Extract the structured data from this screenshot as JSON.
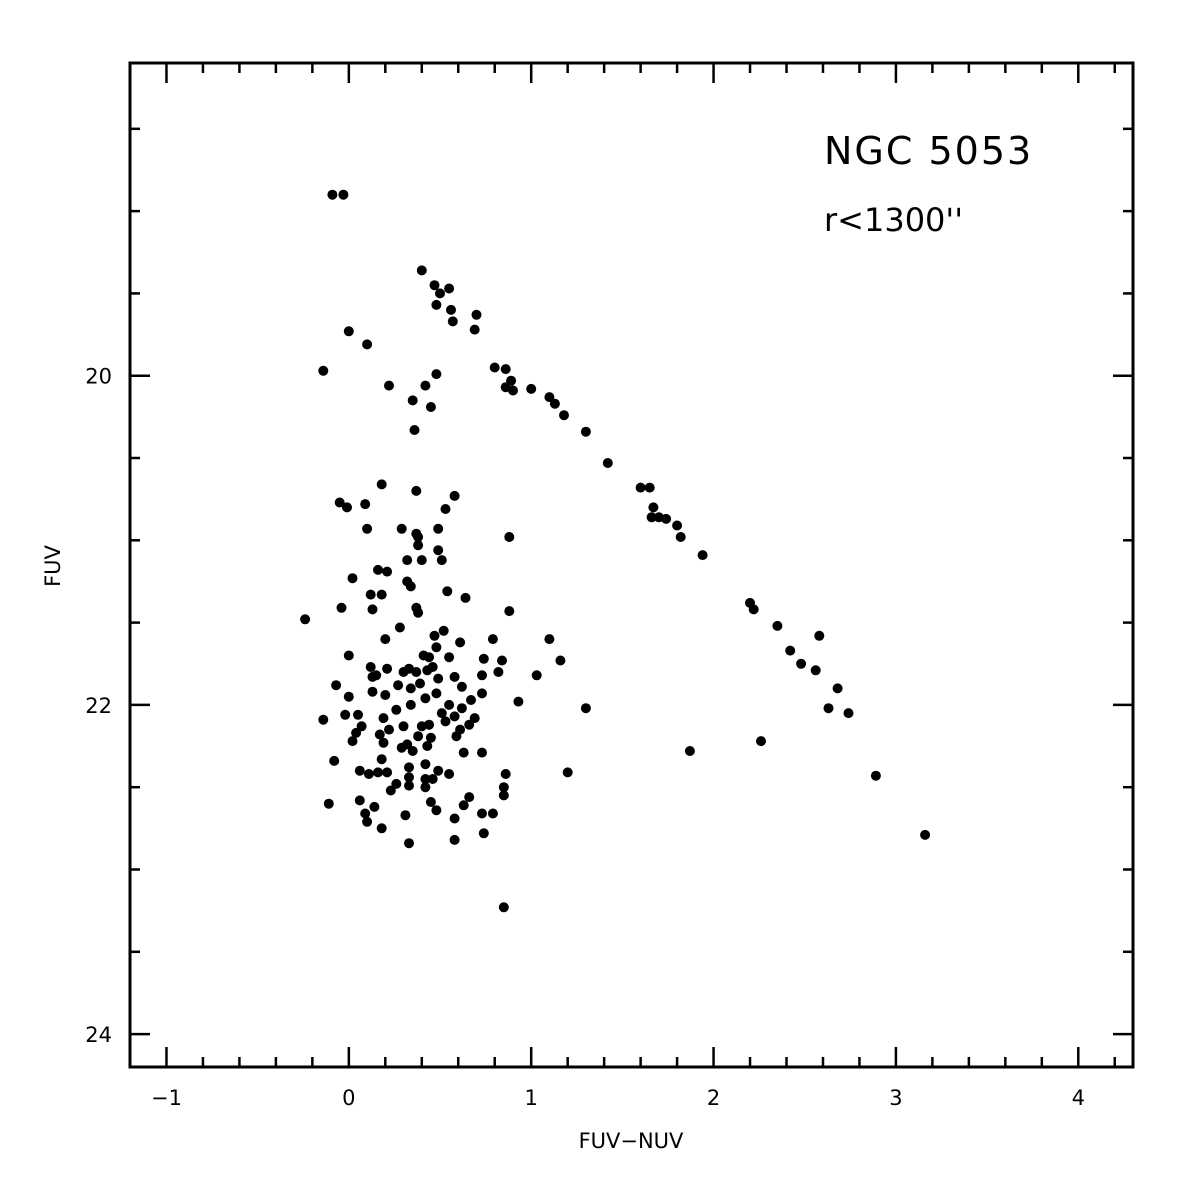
{
  "chart_data": {
    "type": "scatter",
    "title": "",
    "xlabel": "FUV−NUV",
    "ylabel": "FUV",
    "xlim": [
      -1.2,
      4.3
    ],
    "ylim": [
      24.2,
      18.1
    ],
    "y_inverted": true,
    "grid": false,
    "x_ticks": [
      {
        "value": -1,
        "label": "−1"
      },
      {
        "value": 0,
        "label": "0"
      },
      {
        "value": 1,
        "label": "1"
      },
      {
        "value": 2,
        "label": "2"
      },
      {
        "value": 3,
        "label": "3"
      },
      {
        "value": 4,
        "label": "4"
      }
    ],
    "y_ticks": [
      {
        "value": 20,
        "label": "20"
      },
      {
        "value": 22,
        "label": "22"
      },
      {
        "value": 24,
        "label": "24"
      }
    ],
    "annotations": [
      {
        "text": "NGC 5053",
        "role": "title"
      },
      {
        "text": "r<1300''",
        "role": "subtitle"
      }
    ],
    "marker_color": "#000000",
    "series": [
      {
        "points": [
          [
            -0.09,
            18.9
          ],
          [
            -0.03,
            18.9
          ],
          [
            0.4,
            19.36
          ],
          [
            0.47,
            19.45
          ],
          [
            0.5,
            19.5
          ],
          [
            0.55,
            19.47
          ],
          [
            0.48,
            19.57
          ],
          [
            0.56,
            19.6
          ],
          [
            0.7,
            19.63
          ],
          [
            0.57,
            19.67
          ],
          [
            0.69,
            19.72
          ],
          [
            0.0,
            19.73
          ],
          [
            0.1,
            19.81
          ],
          [
            -0.14,
            19.97
          ],
          [
            0.8,
            19.95
          ],
          [
            0.86,
            19.96
          ],
          [
            0.89,
            20.03
          ],
          [
            0.86,
            20.07
          ],
          [
            0.9,
            20.09
          ],
          [
            0.22,
            20.06
          ],
          [
            0.48,
            19.99
          ],
          [
            0.42,
            20.06
          ],
          [
            1.0,
            20.08
          ],
          [
            1.1,
            20.13
          ],
          [
            1.13,
            20.17
          ],
          [
            1.18,
            20.24
          ],
          [
            0.35,
            20.15
          ],
          [
            0.45,
            20.19
          ],
          [
            0.36,
            20.33
          ],
          [
            1.3,
            20.34
          ],
          [
            1.42,
            20.53
          ],
          [
            1.6,
            20.68
          ],
          [
            1.65,
            20.68
          ],
          [
            1.67,
            20.8
          ],
          [
            1.66,
            20.86
          ],
          [
            1.7,
            20.86
          ],
          [
            1.74,
            20.87
          ],
          [
            1.8,
            20.91
          ],
          [
            1.82,
            20.98
          ],
          [
            1.94,
            21.09
          ],
          [
            2.2,
            21.38
          ],
          [
            2.22,
            21.42
          ],
          [
            2.35,
            21.52
          ],
          [
            2.58,
            21.58
          ],
          [
            2.42,
            21.67
          ],
          [
            2.48,
            21.75
          ],
          [
            2.56,
            21.79
          ],
          [
            2.68,
            21.9
          ],
          [
            2.63,
            22.02
          ],
          [
            2.74,
            22.05
          ],
          [
            2.89,
            22.43
          ],
          [
            3.16,
            22.79
          ],
          [
            1.87,
            22.28
          ],
          [
            2.26,
            22.22
          ],
          [
            1.3,
            22.02
          ],
          [
            1.2,
            22.41
          ],
          [
            0.93,
            21.98
          ],
          [
            1.1,
            21.6
          ],
          [
            1.16,
            21.73
          ],
          [
            1.03,
            21.82
          ],
          [
            0.79,
            21.6
          ],
          [
            0.84,
            21.73
          ],
          [
            0.82,
            21.8
          ],
          [
            0.88,
            21.43
          ],
          [
            0.88,
            20.98
          ],
          [
            0.58,
            20.73
          ],
          [
            0.53,
            20.81
          ],
          [
            0.37,
            20.7
          ],
          [
            0.18,
            20.66
          ],
          [
            -0.05,
            20.77
          ],
          [
            0.09,
            20.78
          ],
          [
            -0.01,
            20.8
          ],
          [
            0.1,
            20.93
          ],
          [
            0.29,
            20.93
          ],
          [
            0.49,
            20.93
          ],
          [
            0.37,
            20.96
          ],
          [
            0.38,
            20.98
          ],
          [
            0.38,
            21.03
          ],
          [
            0.49,
            21.06
          ],
          [
            0.32,
            21.12
          ],
          [
            0.4,
            21.12
          ],
          [
            0.51,
            21.12
          ],
          [
            0.16,
            21.18
          ],
          [
            0.21,
            21.19
          ],
          [
            0.02,
            21.23
          ],
          [
            0.32,
            21.25
          ],
          [
            0.34,
            21.28
          ],
          [
            0.54,
            21.31
          ],
          [
            0.12,
            21.33
          ],
          [
            0.18,
            21.33
          ],
          [
            0.64,
            21.35
          ],
          [
            -0.04,
            21.41
          ],
          [
            0.13,
            21.42
          ],
          [
            0.37,
            21.41
          ],
          [
            0.38,
            21.44
          ],
          [
            -0.24,
            21.48
          ],
          [
            0.28,
            21.53
          ],
          [
            0.52,
            21.55
          ],
          [
            0.47,
            21.58
          ],
          [
            0.2,
            21.6
          ],
          [
            0.61,
            21.62
          ],
          [
            0.48,
            21.65
          ],
          [
            0.44,
            21.71
          ],
          [
            0.41,
            21.7
          ],
          [
            0.55,
            21.71
          ],
          [
            0.0,
            21.7
          ],
          [
            0.74,
            21.72
          ],
          [
            0.12,
            21.77
          ],
          [
            0.33,
            21.78
          ],
          [
            0.46,
            21.77
          ],
          [
            0.21,
            21.78
          ],
          [
            0.43,
            21.79
          ],
          [
            0.3,
            21.8
          ],
          [
            0.37,
            21.8
          ],
          [
            0.15,
            21.82
          ],
          [
            0.73,
            21.82
          ],
          [
            0.13,
            21.83
          ],
          [
            0.58,
            21.83
          ],
          [
            0.49,
            21.84
          ],
          [
            0.39,
            21.87
          ],
          [
            0.27,
            21.88
          ],
          [
            -0.07,
            21.88
          ],
          [
            0.62,
            21.89
          ],
          [
            0.34,
            21.9
          ],
          [
            0.13,
            21.92
          ],
          [
            0.48,
            21.93
          ],
          [
            0.73,
            21.93
          ],
          [
            0.2,
            21.94
          ],
          [
            0.0,
            21.95
          ],
          [
            0.42,
            21.96
          ],
          [
            0.67,
            21.97
          ],
          [
            0.34,
            22.0
          ],
          [
            0.55,
            22.0
          ],
          [
            0.62,
            22.02
          ],
          [
            0.26,
            22.03
          ],
          [
            0.51,
            22.05
          ],
          [
            0.05,
            22.06
          ],
          [
            -0.02,
            22.06
          ],
          [
            0.58,
            22.07
          ],
          [
            0.19,
            22.08
          ],
          [
            0.69,
            22.08
          ],
          [
            -0.14,
            22.09
          ],
          [
            0.53,
            22.1
          ],
          [
            0.44,
            22.12
          ],
          [
            0.07,
            22.13
          ],
          [
            0.3,
            22.13
          ],
          [
            0.4,
            22.13
          ],
          [
            0.66,
            22.12
          ],
          [
            0.22,
            22.15
          ],
          [
            0.61,
            22.15
          ],
          [
            0.04,
            22.17
          ],
          [
            0.17,
            22.18
          ],
          [
            0.38,
            22.19
          ],
          [
            0.59,
            22.19
          ],
          [
            0.45,
            22.2
          ],
          [
            0.02,
            22.22
          ],
          [
            0.19,
            22.23
          ],
          [
            0.32,
            22.24
          ],
          [
            0.43,
            22.25
          ],
          [
            0.29,
            22.26
          ],
          [
            0.35,
            22.28
          ],
          [
            0.63,
            22.29
          ],
          [
            0.73,
            22.29
          ],
          [
            0.18,
            22.33
          ],
          [
            -0.08,
            22.34
          ],
          [
            0.42,
            22.36
          ],
          [
            0.33,
            22.38
          ],
          [
            0.06,
            22.4
          ],
          [
            0.49,
            22.4
          ],
          [
            0.11,
            22.42
          ],
          [
            0.21,
            22.41
          ],
          [
            0.16,
            22.41
          ],
          [
            0.55,
            22.42
          ],
          [
            0.86,
            22.42
          ],
          [
            0.33,
            22.44
          ],
          [
            0.42,
            22.45
          ],
          [
            0.46,
            22.45
          ],
          [
            0.26,
            22.48
          ],
          [
            0.33,
            22.49
          ],
          [
            0.42,
            22.5
          ],
          [
            0.85,
            22.5
          ],
          [
            0.23,
            22.52
          ],
          [
            0.85,
            22.55
          ],
          [
            0.66,
            22.56
          ],
          [
            0.06,
            22.58
          ],
          [
            0.45,
            22.59
          ],
          [
            -0.11,
            22.6
          ],
          [
            0.63,
            22.61
          ],
          [
            0.14,
            22.62
          ],
          [
            0.48,
            22.64
          ],
          [
            0.09,
            22.66
          ],
          [
            0.79,
            22.66
          ],
          [
            0.73,
            22.66
          ],
          [
            0.31,
            22.67
          ],
          [
            0.58,
            22.69
          ],
          [
            0.1,
            22.71
          ],
          [
            0.18,
            22.75
          ],
          [
            0.74,
            22.78
          ],
          [
            0.58,
            22.82
          ],
          [
            0.33,
            22.84
          ],
          [
            0.85,
            23.23
          ]
        ]
      }
    ]
  }
}
